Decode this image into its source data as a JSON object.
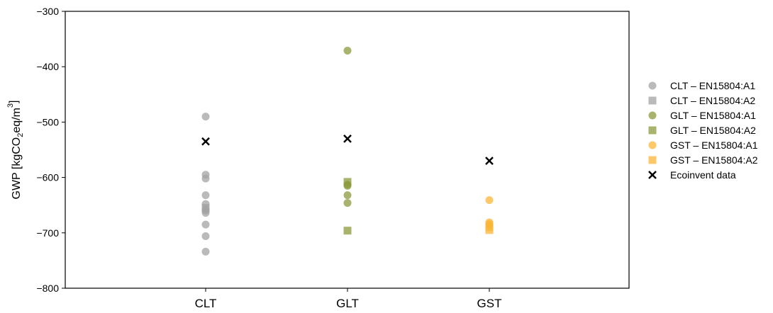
{
  "chart_data": {
    "type": "scatter",
    "categories": [
      "CLT",
      "GLT",
      "GST"
    ],
    "ylabel_main": "GWP [kgCO",
    "ylabel_sub": "2",
    "ylabel_mid": "eq/m",
    "ylabel_sup": "3",
    "ylabel_end": "]",
    "ylim": [
      -800,
      -300
    ],
    "yticks": [
      -800,
      -700,
      -600,
      -500,
      -400,
      -300
    ],
    "ytick_labels": [
      "−800",
      "−700",
      "−600",
      "−500",
      "−400",
      "−300"
    ],
    "grid": false,
    "legend_position": "right",
    "series": [
      {
        "name": "CLT – EN15804:A1",
        "marker": "circle",
        "color": "#a3a3a3",
        "points": [
          {
            "x": "CLT",
            "y": -490
          },
          {
            "x": "CLT",
            "y": -595
          },
          {
            "x": "CLT",
            "y": -602
          },
          {
            "x": "CLT",
            "y": -632
          },
          {
            "x": "CLT",
            "y": -648
          },
          {
            "x": "CLT",
            "y": -657
          },
          {
            "x": "CLT",
            "y": -660
          },
          {
            "x": "CLT",
            "y": -664
          },
          {
            "x": "CLT",
            "y": -685
          },
          {
            "x": "CLT",
            "y": -706
          },
          {
            "x": "CLT",
            "y": -734
          }
        ]
      },
      {
        "name": "CLT – EN15804:A2",
        "marker": "square",
        "color": "#a3a3a3",
        "points": [
          {
            "x": "CLT",
            "y": -655
          }
        ]
      },
      {
        "name": "GLT – EN15804:A1",
        "marker": "circle",
        "color": "#8c9a3c",
        "points": [
          {
            "x": "GLT",
            "y": -371
          },
          {
            "x": "GLT",
            "y": -613
          },
          {
            "x": "GLT",
            "y": -615
          },
          {
            "x": "GLT",
            "y": -632
          },
          {
            "x": "GLT",
            "y": -646
          }
        ]
      },
      {
        "name": "GLT – EN15804:A2",
        "marker": "square",
        "color": "#8c9a3c",
        "points": [
          {
            "x": "GLT",
            "y": -608
          },
          {
            "x": "GLT",
            "y": -696
          }
        ]
      },
      {
        "name": "GST – EN15804:A1",
        "marker": "circle",
        "color": "#fbb538",
        "points": [
          {
            "x": "GST",
            "y": -641
          },
          {
            "x": "GST",
            "y": -681
          },
          {
            "x": "GST",
            "y": -684
          },
          {
            "x": "GST",
            "y": -686
          }
        ]
      },
      {
        "name": "GST – EN15804:A2",
        "marker": "square",
        "color": "#fbb538",
        "points": [
          {
            "x": "GST",
            "y": -690
          },
          {
            "x": "GST",
            "y": -695
          }
        ]
      },
      {
        "name": "Ecoinvent data",
        "marker": "x",
        "color": "#000000",
        "points": [
          {
            "x": "CLT",
            "y": -535
          },
          {
            "x": "GLT",
            "y": -530
          },
          {
            "x": "GST",
            "y": -570
          }
        ]
      }
    ]
  }
}
